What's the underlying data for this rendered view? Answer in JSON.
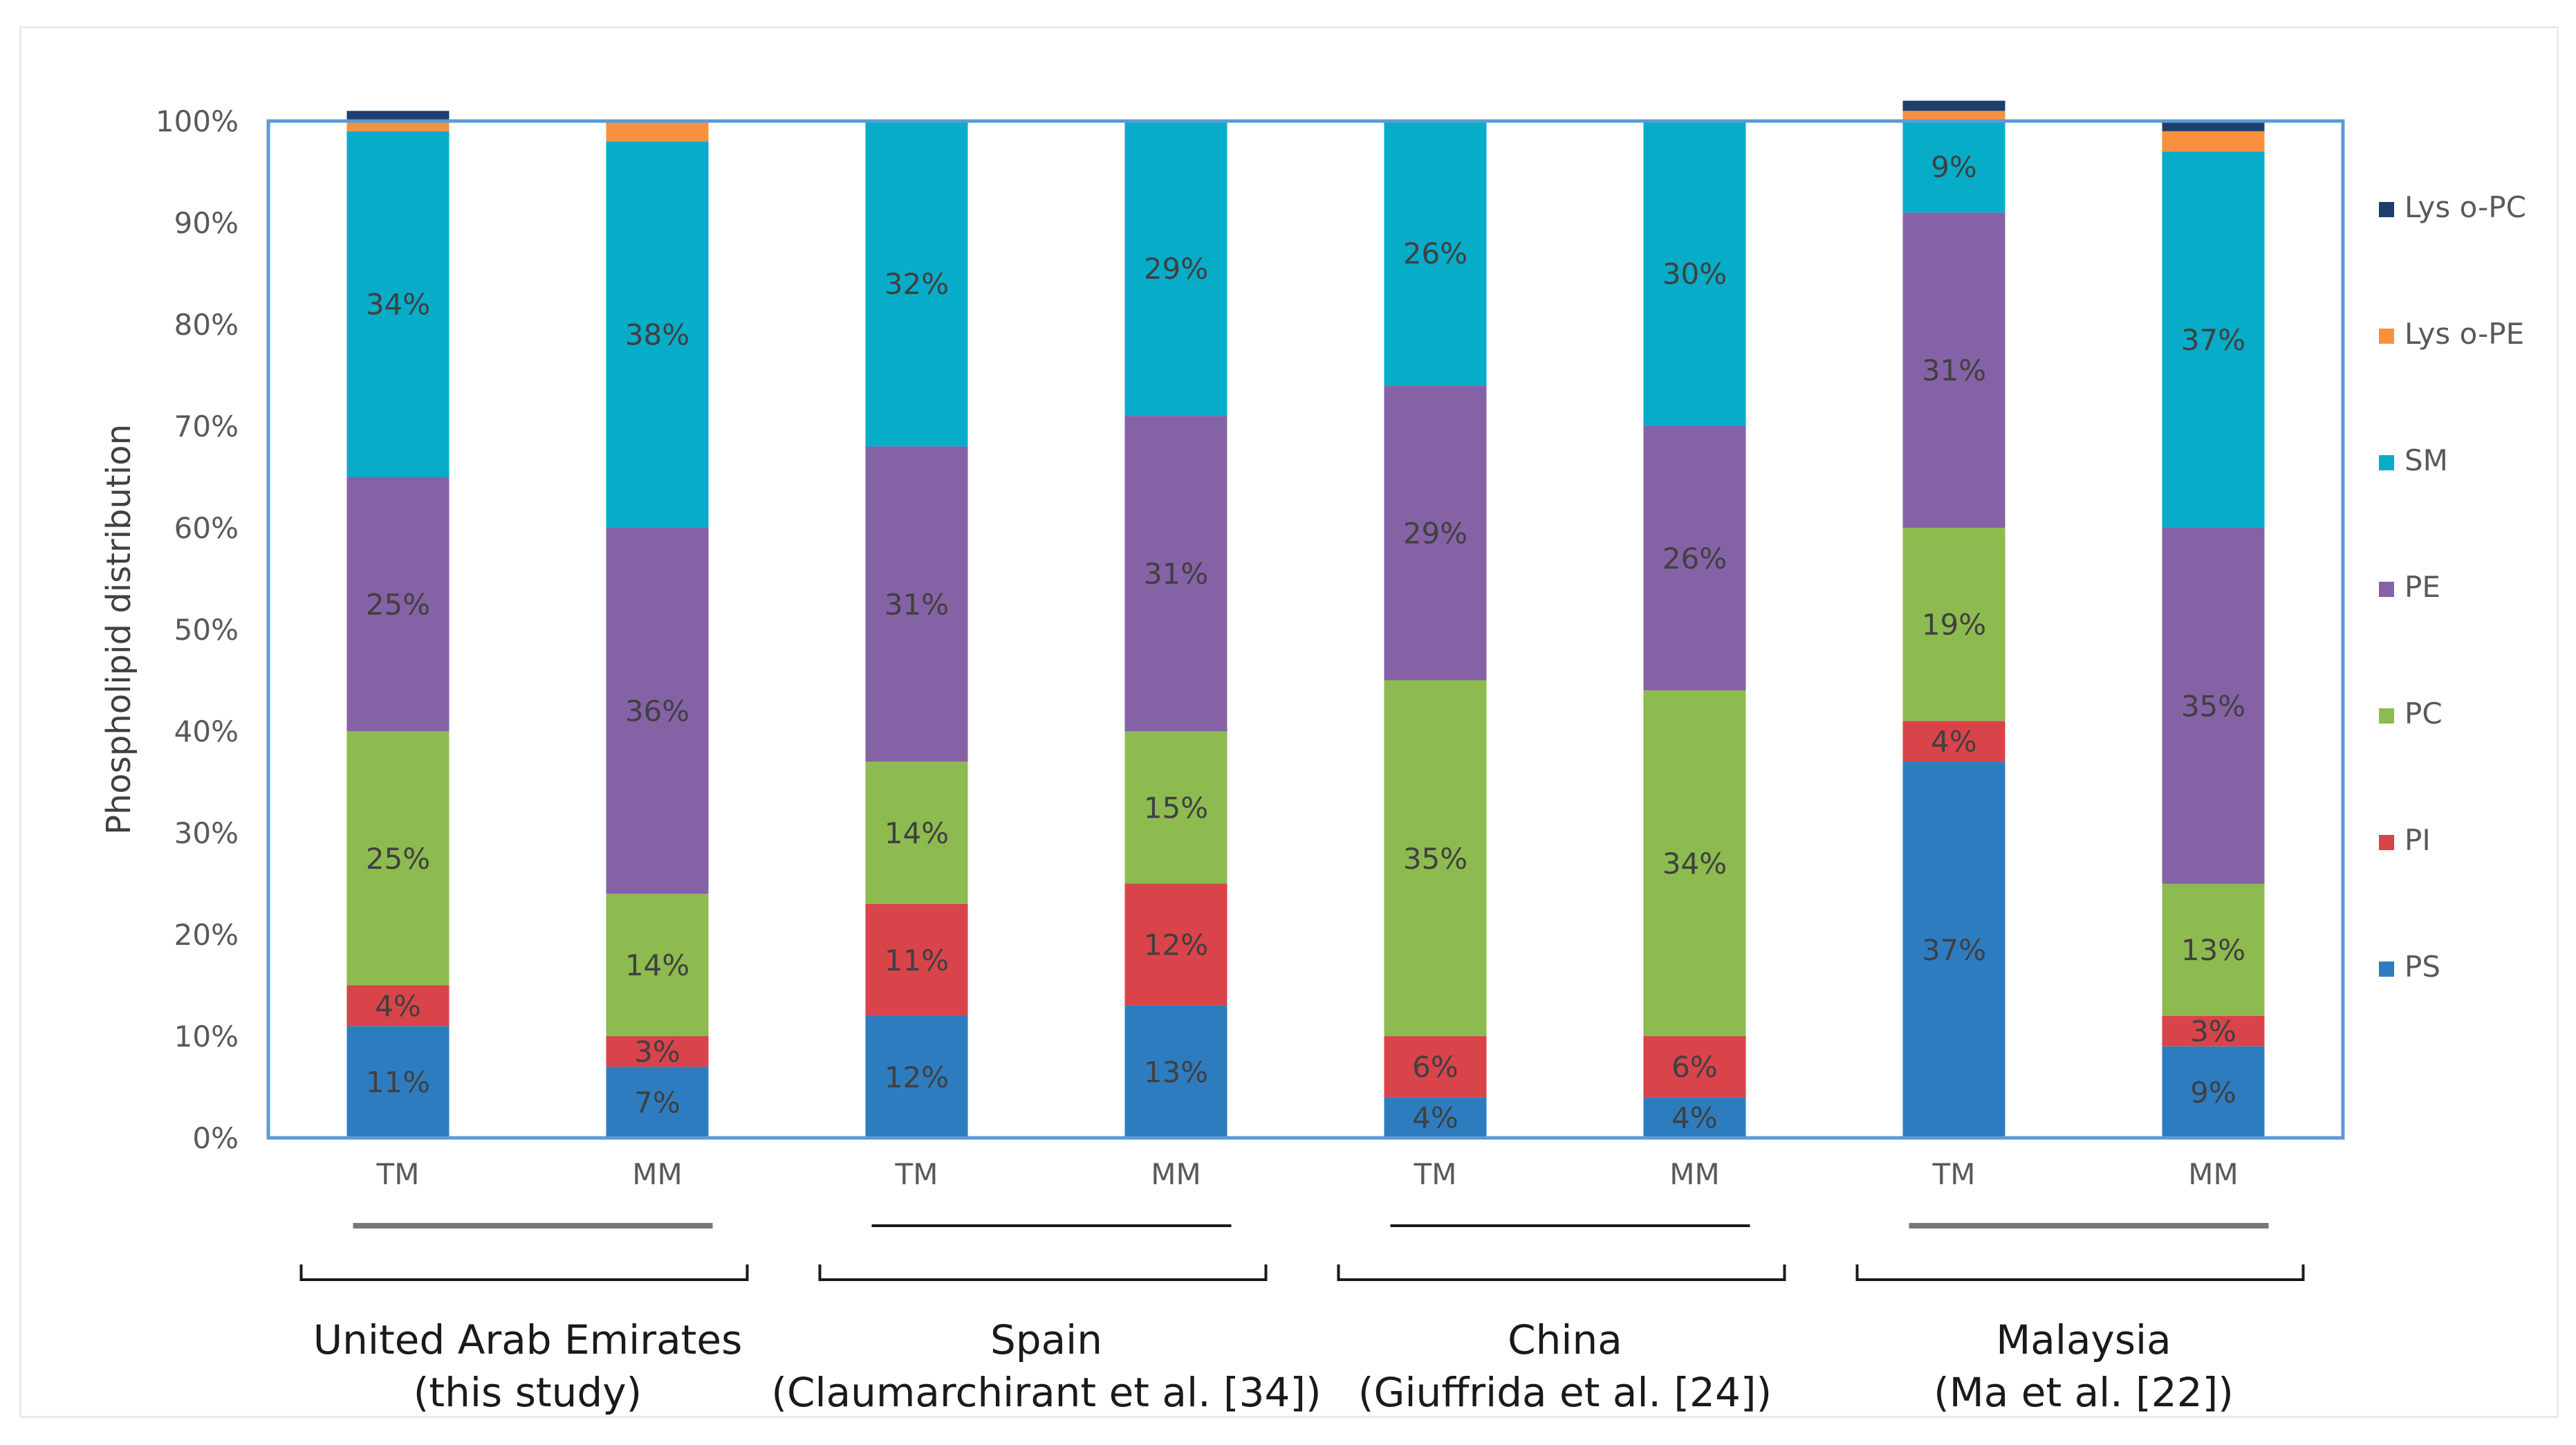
{
  "chart_data": {
    "type": "bar",
    "stacked": true,
    "percent": true,
    "ylabel": "Phospholipid distribution",
    "y_ticks": [
      "0%",
      "10%",
      "20%",
      "30%",
      "40%",
      "50%",
      "60%",
      "70%",
      "80%",
      "90%",
      "100%"
    ],
    "ylim": [
      0,
      100
    ],
    "bars": [
      {
        "label": "TM",
        "group": 0
      },
      {
        "label": "MM",
        "group": 0
      },
      {
        "label": "TM",
        "group": 1
      },
      {
        "label": "MM",
        "group": 1
      },
      {
        "label": "TM",
        "group": 2
      },
      {
        "label": "MM",
        "group": 2
      },
      {
        "label": "TM",
        "group": 3
      },
      {
        "label": "MM",
        "group": 3
      }
    ],
    "groups": [
      {
        "line1": "United Arab Emirates",
        "line2": "(this study)"
      },
      {
        "line1": "Spain",
        "line2": "(Claumarchirant et al. [34])"
      },
      {
        "line1": "China",
        "line2": "(Giuffrida et al. [24])"
      },
      {
        "line1": "Malaysia",
        "line2": "(Ma et al. [22])"
      }
    ],
    "series": [
      {
        "name": "PS",
        "color": "#2e7cc0",
        "values": [
          11,
          7,
          12,
          13,
          4,
          4,
          37,
          9
        ],
        "labels": [
          "11%",
          "7%",
          "12%",
          "13%",
          "4%",
          "4%",
          "37%",
          "9%"
        ]
      },
      {
        "name": "PI",
        "color": "#d9434a",
        "values": [
          4,
          3,
          11,
          12,
          6,
          6,
          4,
          3
        ],
        "labels": [
          "4%",
          "3%",
          "11%",
          "12%",
          "6%",
          "6%",
          "4%",
          "3%"
        ]
      },
      {
        "name": "PC",
        "color": "#8dbb4f",
        "values": [
          25,
          14,
          14,
          15,
          35,
          34,
          19,
          13
        ],
        "labels": [
          "25%",
          "14%",
          "14%",
          "15%",
          "35%",
          "34%",
          "19%",
          "13%"
        ]
      },
      {
        "name": "PE",
        "color": "#8562a5",
        "values": [
          25,
          36,
          31,
          31,
          29,
          26,
          31,
          35
        ],
        "labels": [
          "25%",
          "36%",
          "31%",
          "31%",
          "29%",
          "26%",
          "31%",
          "35%"
        ]
      },
      {
        "name": "SM",
        "color": "#07acc9",
        "values": [
          34,
          38,
          32,
          29,
          26,
          30,
          9,
          37
        ],
        "labels": [
          "34%",
          "38%",
          "32%",
          "29%",
          "26%",
          "30%",
          "9%",
          "37%"
        ]
      },
      {
        "name": "Lys o-PE",
        "color": "#f7913d",
        "values": [
          1,
          2,
          0,
          0,
          0,
          0,
          1,
          2
        ],
        "labels": [
          "",
          "",
          "",
          "",
          "",
          "",
          "",
          ""
        ]
      },
      {
        "name": "Lys o-PC",
        "color": "#1f3e6e",
        "values": [
          1,
          0,
          0,
          0,
          0,
          0,
          1,
          1
        ],
        "labels": [
          "",
          "",
          "",
          "",
          "",
          "",
          "",
          ""
        ]
      }
    ],
    "legend_order": [
      "Lys o-PC",
      "Lys o-PE",
      "SM",
      "PE",
      "PC",
      "PI",
      "PS"
    ],
    "legend_position": "right"
  }
}
